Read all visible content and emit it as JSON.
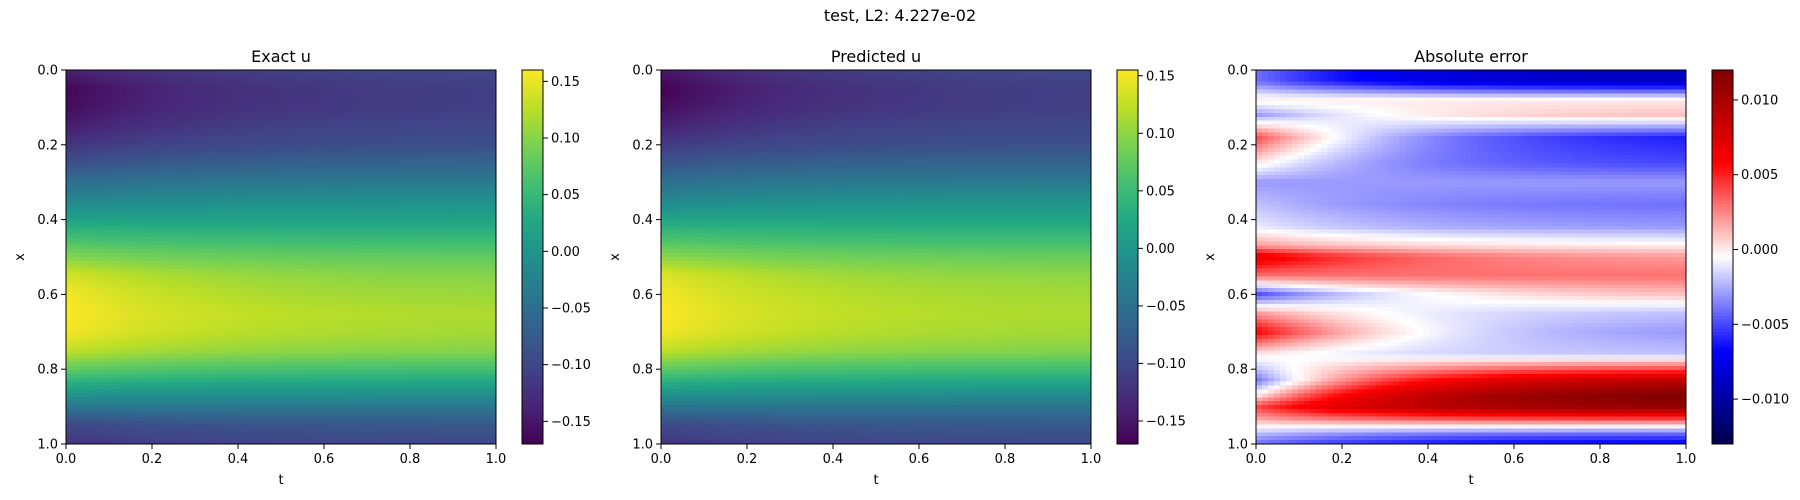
{
  "suptitle": "test, L2: 4.227e-02",
  "chart_data": [
    {
      "type": "heatmap",
      "title": "Exact u",
      "xlabel": "t",
      "ylabel": "x",
      "xlim": [
        0.0,
        1.0
      ],
      "ylim": [
        1.0,
        0.0
      ],
      "x_ticks": [
        "0.0",
        "0.2",
        "0.4",
        "0.6",
        "0.8",
        "1.0"
      ],
      "y_ticks": [
        "0.0",
        "0.2",
        "0.4",
        "0.6",
        "0.8",
        "1.0"
      ],
      "colormap": "viridis",
      "colorbar": {
        "range": [
          -0.17,
          0.16
        ],
        "ticks": [
          0.15,
          0.1,
          0.05,
          0.0,
          -0.05,
          -0.1,
          -0.15
        ],
        "tick_labels": [
          "0.15",
          "0.10",
          "0.05",
          "0.00",
          "−0.05",
          "−0.10",
          "−0.15"
        ]
      },
      "profile_x": [
        0.0,
        0.05,
        0.1,
        0.15,
        0.2,
        0.25,
        0.3,
        0.35,
        0.4,
        0.45,
        0.5,
        0.55,
        0.6,
        0.65,
        0.7,
        0.75,
        0.8,
        0.85,
        0.9,
        0.95,
        1.0
      ],
      "profile_u_t0": [
        -0.14,
        -0.165,
        -0.16,
        -0.145,
        -0.12,
        -0.09,
        -0.05,
        -0.02,
        0.02,
        0.06,
        0.1,
        0.14,
        0.155,
        0.16,
        0.155,
        0.13,
        0.08,
        0.02,
        -0.04,
        -0.1,
        -0.12
      ],
      "profile_u_t1": [
        -0.1,
        -0.11,
        -0.11,
        -0.1,
        -0.09,
        -0.065,
        -0.035,
        -0.005,
        0.02,
        0.05,
        0.08,
        0.1,
        0.11,
        0.12,
        0.115,
        0.1,
        0.06,
        0.01,
        -0.04,
        -0.08,
        -0.1
      ]
    },
    {
      "type": "heatmap",
      "title": "Predicted u",
      "xlabel": "t",
      "ylabel": "x",
      "xlim": [
        0.0,
        1.0
      ],
      "ylim": [
        1.0,
        0.0
      ],
      "x_ticks": [
        "0.0",
        "0.2",
        "0.4",
        "0.6",
        "0.8",
        "1.0"
      ],
      "y_ticks": [
        "0.0",
        "0.2",
        "0.4",
        "0.6",
        "0.8",
        "1.0"
      ],
      "colormap": "viridis",
      "colorbar": {
        "range": [
          -0.17,
          0.155
        ],
        "ticks": [
          0.15,
          0.1,
          0.05,
          0.0,
          -0.05,
          -0.1,
          -0.15
        ],
        "tick_labels": [
          "0.15",
          "0.10",
          "0.05",
          "0.00",
          "−0.05",
          "−0.10",
          "−0.15"
        ]
      },
      "profile_x": [
        0.0,
        0.05,
        0.1,
        0.15,
        0.2,
        0.25,
        0.3,
        0.35,
        0.4,
        0.45,
        0.5,
        0.55,
        0.6,
        0.65,
        0.7,
        0.75,
        0.8,
        0.85,
        0.9,
        0.95,
        1.0
      ],
      "profile_u_t0": [
        -0.15,
        -0.17,
        -0.16,
        -0.14,
        -0.115,
        -0.085,
        -0.05,
        -0.02,
        0.02,
        0.06,
        0.1,
        0.14,
        0.15,
        0.155,
        0.15,
        0.125,
        0.075,
        0.015,
        -0.045,
        -0.1,
        -0.12
      ],
      "profile_u_t1": [
        -0.1,
        -0.11,
        -0.11,
        -0.1,
        -0.09,
        -0.065,
        -0.035,
        -0.005,
        0.02,
        0.05,
        0.08,
        0.1,
        0.11,
        0.115,
        0.11,
        0.095,
        0.055,
        0.005,
        -0.045,
        -0.08,
        -0.1
      ]
    },
    {
      "type": "heatmap",
      "title": "Absolute error",
      "xlabel": "t",
      "ylabel": "x",
      "xlim": [
        0.0,
        1.0
      ],
      "ylim": [
        1.0,
        0.0
      ],
      "x_ticks": [
        "0.0",
        "0.2",
        "0.4",
        "0.6",
        "0.8",
        "1.0"
      ],
      "y_ticks": [
        "0.0",
        "0.2",
        "0.4",
        "0.6",
        "0.8",
        "1.0"
      ],
      "colormap": "seismic",
      "colorbar": {
        "range": [
          -0.013,
          0.012
        ],
        "ticks": [
          0.01,
          0.005,
          0.0,
          -0.005,
          -0.01
        ],
        "tick_labels": [
          "0.010",
          "0.005",
          "0.000",
          "−0.005",
          "−0.010"
        ]
      },
      "profile_x": [
        0.0,
        0.03,
        0.08,
        0.12,
        0.18,
        0.25,
        0.3,
        0.36,
        0.42,
        0.47,
        0.5,
        0.55,
        0.6,
        0.65,
        0.7,
        0.76,
        0.8,
        0.83,
        0.87,
        0.9,
        0.93,
        0.97,
        1.0
      ],
      "profile_err_t0": [
        -0.004,
        -0.004,
        0.0,
        -0.003,
        0.004,
        0.0,
        -0.003,
        -0.002,
        -0.001,
        0.002,
        0.007,
        0.003,
        -0.005,
        0.002,
        0.006,
        0.0,
        -0.002,
        -0.004,
        0.0,
        0.004,
        0.002,
        -0.002,
        -0.004
      ],
      "profile_err_t1": [
        -0.009,
        -0.009,
        0.0,
        0.001,
        -0.006,
        -0.005,
        -0.003,
        -0.004,
        -0.003,
        0.0,
        0.002,
        0.003,
        0.001,
        -0.002,
        -0.003,
        -0.002,
        0.004,
        0.009,
        0.012,
        0.011,
        0.005,
        -0.004,
        -0.007
      ]
    }
  ]
}
